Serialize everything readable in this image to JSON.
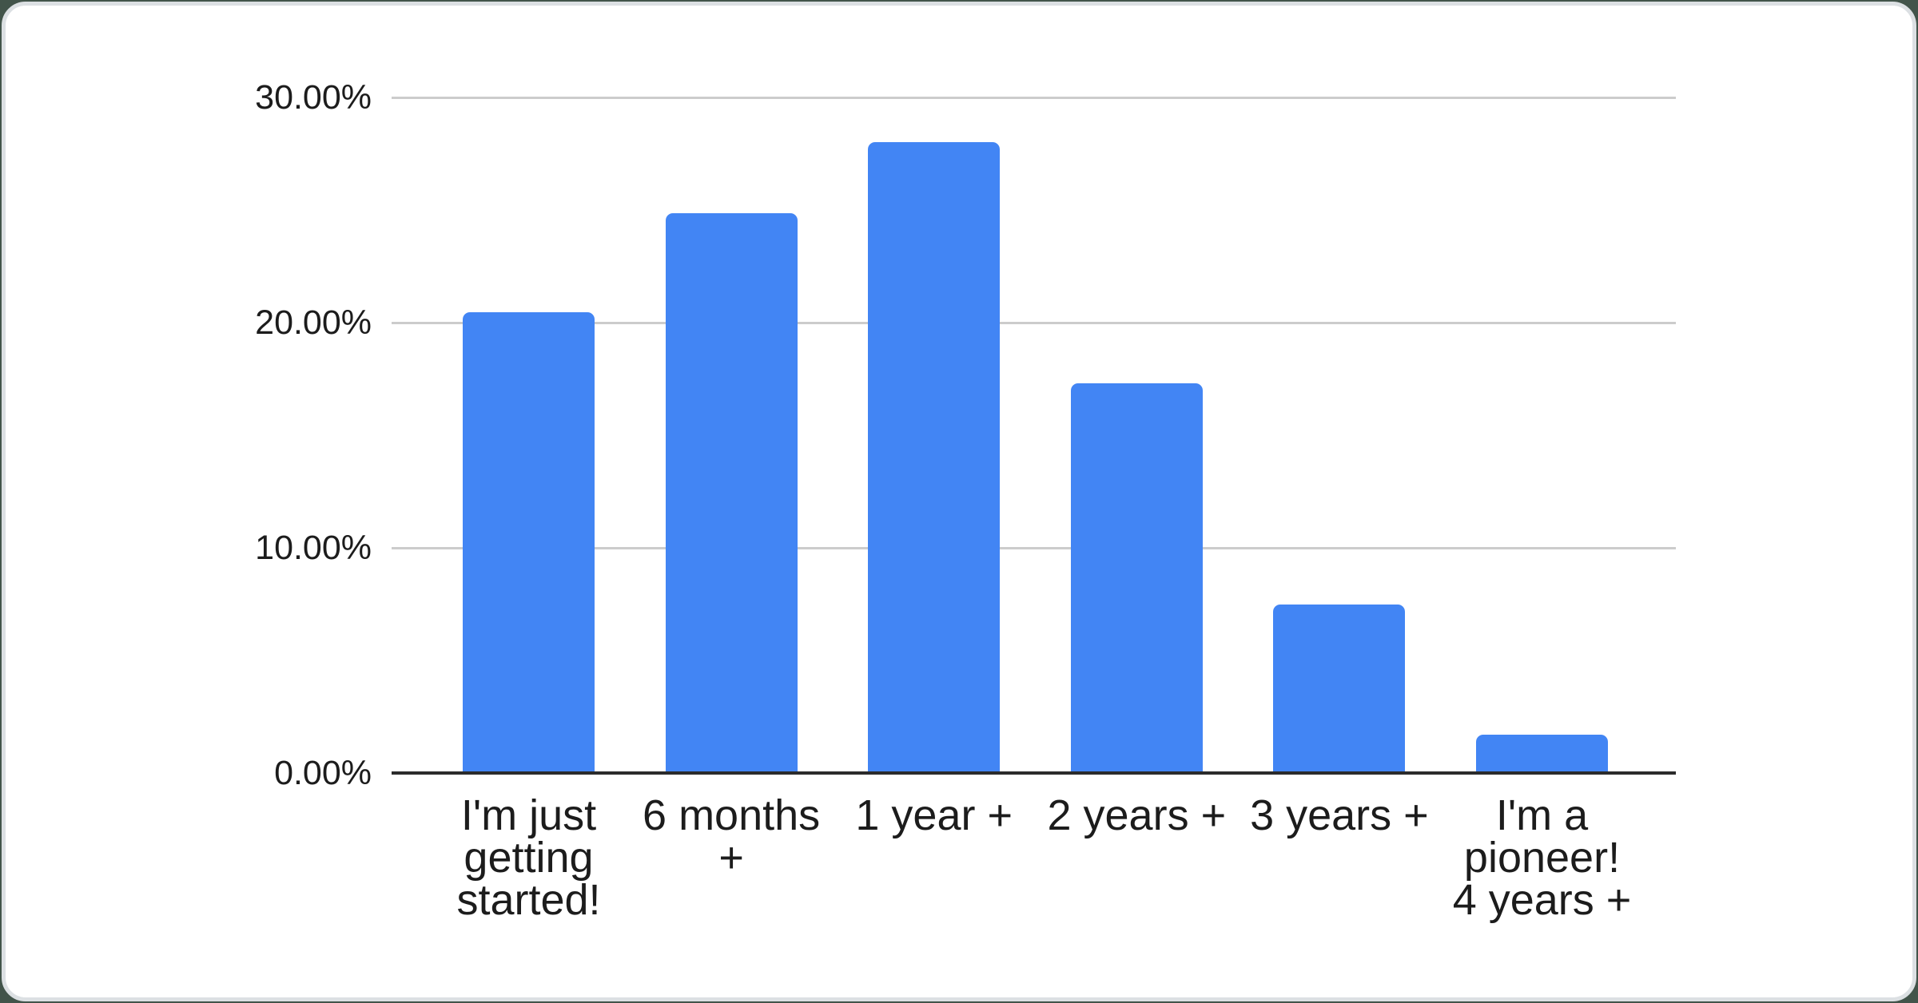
{
  "page": {
    "background_color": "#42544a",
    "card": {
      "background_color": "#ffffff",
      "border_color": "#dce0e3"
    }
  },
  "chart_data": {
    "type": "bar",
    "title": "",
    "legend": "none",
    "grid": true,
    "categories": [
      {
        "label": "I'm just getting started!",
        "lines": [
          "I'm just",
          "getting",
          "started!"
        ]
      },
      {
        "label": "6 months +",
        "lines": [
          "6 months",
          "+"
        ]
      },
      {
        "label": "1 year +",
        "lines": [
          "1 year +"
        ]
      },
      {
        "label": "2 years +",
        "lines": [
          "2 years +"
        ]
      },
      {
        "label": "3 years +",
        "lines": [
          "3 years +"
        ]
      },
      {
        "label": "I'm a pioneer! 4 years +",
        "lines": [
          "I'm a",
          "pioneer!",
          "4 years +"
        ]
      }
    ],
    "values": [
      20.45,
      24.85,
      28.0,
      17.3,
      7.5,
      1.7
    ],
    "unit": "%",
    "ylim": [
      0,
      30
    ],
    "y_axis": {
      "min": 0,
      "max": 30,
      "ticks": [
        {
          "label": "30.00%",
          "value": 30
        },
        {
          "label": "20.00%",
          "value": 20
        },
        {
          "label": "10.00%",
          "value": 10
        },
        {
          "label": "0.00%",
          "value": 0
        }
      ]
    },
    "colors": {
      "bar": "#4285f4",
      "gridline": "#cccccc",
      "axis_line": "#2b2b2b",
      "text": "#1c1c1c"
    }
  }
}
